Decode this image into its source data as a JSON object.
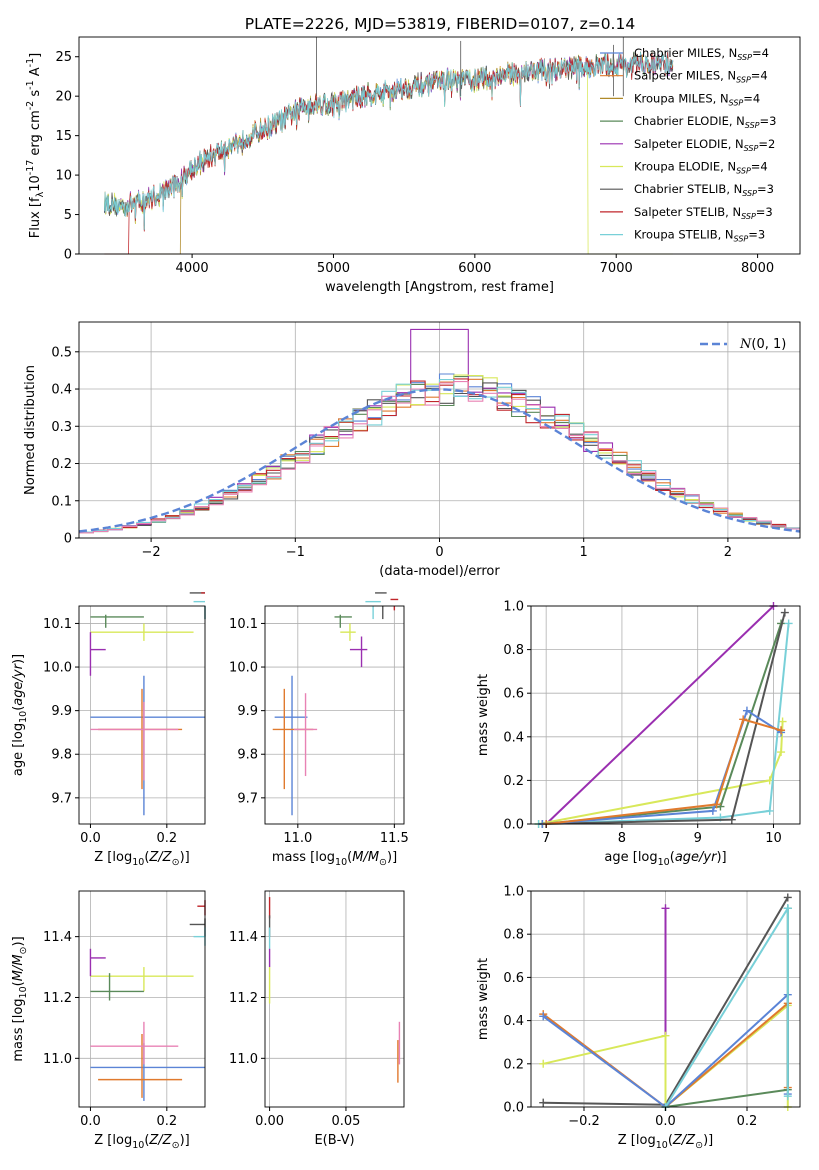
{
  "figure_title": "PLATE=2226, MJD=53819, FIBERID=0107, z=0.14",
  "colors": {
    "Chabrier MILES": "#5b84d6",
    "Salpeter MILES": "#e07a2e",
    "Kroupa MILES": "#b08a2a",
    "Chabrier ELODIE": "#5a8a5a",
    "Salpeter ELODIE": "#9a2fb0",
    "Kroupa ELODIE": "#d8e85a",
    "Chabrier STELIB": "#555555",
    "Salpeter STELIB": "#c0262b",
    "Kroupa STELIB": "#78d0d8",
    "pink": "#e882b4",
    "gaussian": "#5b84d6"
  },
  "chart_data": [
    {
      "id": "spectrum",
      "type": "line",
      "title": "",
      "xlabel": "wavelength [Angstrom, rest frame]",
      "ylabel": "Flux [f_λ10^{-17} erg cm^{-2} s^{-1} A^{-1}]",
      "xlim": [
        3200,
        8300
      ],
      "ylim": [
        0,
        27.5
      ],
      "xticks": [
        4000,
        5000,
        6000,
        7000,
        8000
      ],
      "yticks": [
        0,
        5,
        10,
        15,
        20,
        25
      ],
      "grid": false,
      "legend_position": "right",
      "series": [
        {
          "name": "Chabrier MILES",
          "nssp": "4"
        },
        {
          "name": "Salpeter MILES",
          "nssp": "4"
        },
        {
          "name": "Kroupa MILES",
          "nssp": "4"
        },
        {
          "name": "Chabrier ELODIE",
          "nssp": "3"
        },
        {
          "name": "Salpeter ELODIE",
          "nssp": "2"
        },
        {
          "name": "Kroupa ELODIE",
          "nssp": "4"
        },
        {
          "name": "Chabrier STELIB",
          "nssp": "3"
        },
        {
          "name": "Salpeter STELIB",
          "nssp": "3"
        },
        {
          "name": "Kroupa STELIB",
          "nssp": "3"
        }
      ],
      "continuum": {
        "x": [
          3380,
          3500,
          3700,
          3900,
          4000,
          4200,
          4400,
          4600,
          4800,
          5000,
          5200,
          5500,
          5800,
          6000,
          6300,
          6600,
          7000,
          7200,
          7400
        ],
        "y": [
          6.5,
          6,
          7,
          9,
          11,
          13,
          15,
          16.5,
          19,
          19,
          20,
          21,
          22,
          22,
          23,
          23.5,
          24,
          24,
          24
        ]
      },
      "cutoffs": [
        {
          "series": "Salpeter STELIB",
          "x": 3550
        },
        {
          "series": "Kroupa MILES",
          "x": 3920
        },
        {
          "series": "Kroupa ELODIE",
          "x": 6800
        },
        {
          "series": "Salpeter MILES",
          "x": 7400
        }
      ]
    },
    {
      "id": "residuals",
      "type": "histogram",
      "xlabel": "(data-model)/error",
      "ylabel": "Normed distribution",
      "xlim": [
        -2.5,
        2.5
      ],
      "ylim": [
        0,
        0.58
      ],
      "xticks": [
        -2,
        -1,
        0,
        1,
        2
      ],
      "yticks": [
        0.0,
        0.1,
        0.2,
        0.3,
        0.4,
        0.5
      ],
      "grid": true,
      "legend_position": "top-right",
      "legend": "N(0,1)",
      "bin_width": 0.1
    },
    {
      "id": "age_vs_Z",
      "type": "errorbar",
      "xlabel": "Z [log10(Z/Z⊙)]",
      "ylabel": "age  [log10(age/yr)]",
      "xlim": [
        -0.03,
        0.3
      ],
      "ylim": [
        9.64,
        10.14
      ],
      "xticks": [
        "0.0",
        "0.2"
      ],
      "yticks": [
        "9.7",
        "9.8",
        "9.9",
        "10.0",
        "10.1"
      ],
      "grid": true,
      "points": [
        {
          "s": "Chabrier MILES",
          "x": 0.14,
          "y": 9.885,
          "xerr": [
            0.0,
            0.3
          ],
          "yerr": [
            9.66,
            9.98
          ]
        },
        {
          "s": "Salpeter MILES",
          "x": 0.135,
          "y": 9.857,
          "xerr": [
            0.02,
            0.24
          ],
          "yerr": [
            9.72,
            9.95
          ]
        },
        {
          "s": "pink",
          "x": 0.14,
          "y": 9.857,
          "xerr": [
            0.0,
            0.23
          ],
          "yerr": [
            9.74,
            9.92
          ]
        },
        {
          "s": "Kroupa ELODIE",
          "x": 0.14,
          "y": 10.08,
          "xerr": [
            0.0,
            0.27
          ],
          "yerr": [
            10.06,
            10.1
          ]
        },
        {
          "s": "Chabrier ELODIE",
          "x": 0.04,
          "y": 10.115,
          "xerr": [
            0.0,
            0.14
          ],
          "yerr": [
            10.09,
            10.12
          ]
        },
        {
          "s": "Salpeter ELODIE",
          "x": 0.0,
          "y": 10.04,
          "xerr": [
            0.0,
            0.04
          ],
          "yerr": [
            9.98,
            10.08
          ]
        },
        {
          "s": "Chabrier STELIB",
          "x": 0.3,
          "y": 10.17,
          "xerr": [
            0.26,
            0.3
          ],
          "yerr": [
            10.11,
            10.175
          ]
        },
        {
          "s": "Kroupa STELIB",
          "x": 0.3,
          "y": 10.15,
          "xerr": [
            0.27,
            0.3
          ],
          "yerr": [
            10.11,
            10.16
          ]
        },
        {
          "s": "Salpeter STELIB",
          "x": 0.3,
          "y": 10.17,
          "xerr": [
            0.29,
            0.3
          ],
          "yerr": [
            10.15,
            10.18
          ]
        }
      ]
    },
    {
      "id": "age_vs_mass",
      "type": "errorbar",
      "xlabel": "mass [log10(M/M⊙)]",
      "ylabel": "",
      "xlim": [
        10.83,
        11.55
      ],
      "ylim": [
        9.64,
        10.14
      ],
      "xticks": [
        "11.0",
        "11.5"
      ],
      "yticks": [
        "9.7",
        "9.8",
        "9.9",
        "10.0",
        "10.1"
      ],
      "grid": true,
      "points": [
        {
          "s": "Chabrier MILES",
          "x": 10.97,
          "y": 9.885,
          "xerr": [
            10.88,
            11.05
          ],
          "yerr": [
            9.66,
            9.98
          ]
        },
        {
          "s": "Salpeter MILES",
          "x": 10.93,
          "y": 9.857,
          "xerr": [
            10.87,
            11.08
          ],
          "yerr": [
            9.72,
            9.95
          ]
        },
        {
          "s": "pink",
          "x": 11.04,
          "y": 9.857,
          "xerr": [
            10.98,
            11.1
          ],
          "yerr": [
            9.75,
            9.94
          ]
        },
        {
          "s": "Kroupa ELODIE",
          "x": 11.27,
          "y": 10.08,
          "xerr": [
            11.22,
            11.3
          ],
          "yerr": [
            10.06,
            10.1
          ]
        },
        {
          "s": "Chabrier ELODIE",
          "x": 11.22,
          "y": 10.115,
          "xerr": [
            11.19,
            11.28
          ],
          "yerr": [
            10.09,
            10.12
          ]
        },
        {
          "s": "Salpeter ELODIE",
          "x": 11.33,
          "y": 10.04,
          "xerr": [
            11.27,
            11.36
          ],
          "yerr": [
            10.0,
            10.07
          ]
        },
        {
          "s": "Kroupa STELIB",
          "x": 11.39,
          "y": 10.15,
          "xerr": [
            11.35,
            11.43
          ],
          "yerr": [
            10.11,
            10.16
          ]
        },
        {
          "s": "Chabrier STELIB",
          "x": 11.44,
          "y": 10.17,
          "xerr": [
            11.4,
            11.46
          ],
          "yerr": [
            10.11,
            10.175
          ]
        },
        {
          "s": "Salpeter STELIB",
          "x": 11.5,
          "y": 10.155,
          "xerr": [
            11.48,
            11.52
          ],
          "yerr": [
            10.13,
            10.18
          ]
        }
      ]
    },
    {
      "id": "mass_weight_vs_age",
      "type": "line",
      "xlabel": "age  [log10(age/yr)]",
      "ylabel": "mass weight",
      "xlim": [
        6.8,
        10.35
      ],
      "ylim": [
        0,
        1.0
      ],
      "xticks": [
        "7",
        "8",
        "9",
        "10"
      ],
      "yticks": [
        "0.0",
        "0.2",
        "0.4",
        "0.6",
        "0.8",
        "1.0"
      ],
      "grid": true,
      "series": [
        {
          "s": "Salpeter ELODIE",
          "x": [
            7.0,
            10.0
          ],
          "y": [
            0.0,
            1.0
          ]
        },
        {
          "s": "Kroupa ELODIE",
          "x": [
            6.9,
            9.95,
            10.1,
            10.12
          ],
          "y": [
            0.0,
            0.2,
            0.33,
            0.47
          ]
        },
        {
          "s": "Chabrier ELODIE",
          "x": [
            6.95,
            9.3,
            10.1
          ],
          "y": [
            0.0,
            0.08,
            0.92
          ]
        },
        {
          "s": "Kroupa STELIB",
          "x": [
            6.9,
            9.3,
            9.95,
            10.2
          ],
          "y": [
            0.0,
            0.03,
            0.06,
            0.92
          ]
        },
        {
          "s": "Chabrier STELIB",
          "x": [
            6.95,
            9.45,
            10.15
          ],
          "y": [
            0.0,
            0.02,
            0.97
          ]
        },
        {
          "s": "Chabrier MILES",
          "x": [
            6.95,
            9.2,
            9.65,
            10.1
          ],
          "y": [
            0.0,
            0.06,
            0.52,
            0.42
          ]
        },
        {
          "s": "Salpeter MILES",
          "x": [
            7.0,
            9.25,
            9.6,
            10.1
          ],
          "y": [
            0.0,
            0.09,
            0.48,
            0.43
          ]
        }
      ]
    },
    {
      "id": "mass_vs_Z",
      "type": "errorbar",
      "xlabel": "Z [log10(Z/Z⊙)]",
      "ylabel": "mass [log10(M/M⊙)]",
      "xlim": [
        -0.03,
        0.3
      ],
      "ylim": [
        10.84,
        11.55
      ],
      "xticks": [
        "0.0",
        "0.2"
      ],
      "yticks": [
        "11.0",
        "11.2",
        "11.4"
      ],
      "grid": true,
      "points": [
        {
          "s": "Chabrier MILES",
          "x": 0.14,
          "y": 10.97,
          "xerr": [
            0.0,
            0.3
          ],
          "yerr": [
            10.86,
            11.05
          ]
        },
        {
          "s": "Salpeter MILES",
          "x": 0.135,
          "y": 10.93,
          "xerr": [
            0.02,
            0.24
          ],
          "yerr": [
            10.87,
            11.08
          ]
        },
        {
          "s": "pink",
          "x": 0.14,
          "y": 11.04,
          "xerr": [
            0.0,
            0.23
          ],
          "yerr": [
            10.98,
            11.12
          ]
        },
        {
          "s": "Kroupa ELODIE",
          "x": 0.14,
          "y": 11.27,
          "xerr": [
            0.0,
            0.27
          ],
          "yerr": [
            11.22,
            11.3
          ]
        },
        {
          "s": "Chabrier ELODIE",
          "x": 0.05,
          "y": 11.22,
          "xerr": [
            0.0,
            0.14
          ],
          "yerr": [
            11.19,
            11.28
          ]
        },
        {
          "s": "Salpeter ELODIE",
          "x": 0.0,
          "y": 11.33,
          "xerr": [
            0.0,
            0.04
          ],
          "yerr": [
            11.27,
            11.36
          ]
        },
        {
          "s": "Chabrier STELIB",
          "x": 0.3,
          "y": 11.44,
          "xerr": [
            0.26,
            0.3
          ],
          "yerr": [
            11.4,
            11.46
          ]
        },
        {
          "s": "Kroupa STELIB",
          "x": 0.3,
          "y": 11.4,
          "xerr": [
            0.27,
            0.3
          ],
          "yerr": [
            11.37,
            11.43
          ]
        },
        {
          "s": "Salpeter STELIB",
          "x": 0.3,
          "y": 11.5,
          "xerr": [
            0.28,
            0.3
          ],
          "yerr": [
            11.47,
            11.52
          ]
        }
      ]
    },
    {
      "id": "mass_vs_ebv",
      "type": "errorbar",
      "xlabel": "E(B-V)",
      "ylabel": "",
      "xlim": [
        -0.003,
        0.088
      ],
      "ylim": [
        10.84,
        11.55
      ],
      "xticks": [
        "0.00",
        "0.05"
      ],
      "yticks": [
        "11.0",
        "11.2",
        "11.4"
      ],
      "grid": true,
      "points": [
        {
          "s": "Salpeter MILES",
          "x": 0.084,
          "y": 10.97,
          "xerr": [
            0.084,
            0.084
          ],
          "yerr": [
            10.92,
            11.06
          ]
        },
        {
          "s": "pink",
          "x": 0.085,
          "y": 11.04,
          "xerr": [
            0.085,
            0.085
          ],
          "yerr": [
            10.98,
            11.12
          ]
        },
        {
          "s": "Salpeter STELIB",
          "x": 0.0,
          "y": 11.5,
          "xerr": [
            0.0,
            0.0
          ],
          "yerr": [
            11.46,
            11.53
          ]
        },
        {
          "s": "Chabrier STELIB",
          "x": 0.0,
          "y": 11.44,
          "xerr": [
            0.0,
            0.0
          ],
          "yerr": [
            11.4,
            11.47
          ]
        },
        {
          "s": "Kroupa STELIB",
          "x": 0.0,
          "y": 11.4,
          "xerr": [
            0.0,
            0.0
          ],
          "yerr": [
            11.36,
            11.43
          ]
        },
        {
          "s": "Salpeter ELODIE",
          "x": 0.0,
          "y": 11.33,
          "xerr": [
            0.0,
            0.0
          ],
          "yerr": [
            11.3,
            11.36
          ]
        },
        {
          "s": "Kroupa ELODIE",
          "x": 0.0,
          "y": 11.22,
          "xerr": [
            0.0,
            0.0
          ],
          "yerr": [
            11.18,
            11.3
          ]
        }
      ]
    },
    {
      "id": "mass_weight_vs_Z",
      "type": "line",
      "xlabel": "Z [log10(Z/Z⊙)]",
      "ylabel": "mass weight",
      "xlim": [
        -0.33,
        0.33
      ],
      "ylim": [
        0,
        1.0
      ],
      "xticks": [
        "-0.2",
        "0.0",
        "0.2"
      ],
      "yticks": [
        "0.0",
        "0.2",
        "0.4",
        "0.6",
        "0.8",
        "1.0"
      ],
      "grid": true,
      "series": [
        {
          "s": "Salpeter ELODIE",
          "x": [
            0.0,
            0.0
          ],
          "y": [
            0.0,
            0.92
          ]
        },
        {
          "s": "Chabrier STELIB",
          "x": [
            -0.3,
            0.0,
            0.3
          ],
          "y": [
            0.02,
            0.01,
            0.97
          ]
        },
        {
          "s": "Kroupa ELODIE",
          "x": [
            -0.3,
            0.0,
            0.0,
            0.3,
            0.3
          ],
          "y": [
            0.2,
            0.33,
            0.0,
            0.47,
            0.0
          ]
        },
        {
          "s": "Salpeter MILES",
          "x": [
            -0.3,
            0.0,
            0.3,
            0.3
          ],
          "y": [
            0.43,
            0.0,
            0.48,
            0.09
          ]
        },
        {
          "s": "Chabrier MILES",
          "x": [
            -0.3,
            0.0,
            0.3,
            0.3
          ],
          "y": [
            0.42,
            0.0,
            0.52,
            0.06
          ]
        },
        {
          "s": "Chabrier ELODIE",
          "x": [
            0.0,
            0.3,
            0.3
          ],
          "y": [
            0.0,
            0.08,
            0.92
          ]
        },
        {
          "s": "Kroupa STELIB",
          "x": [
            0.0,
            0.3,
            0.3
          ],
          "y": [
            0.0,
            0.92,
            0.05
          ]
        }
      ]
    }
  ]
}
